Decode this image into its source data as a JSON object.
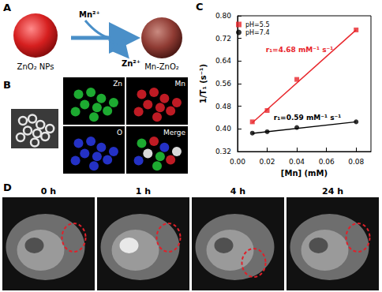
{
  "panel_a": {
    "label": "A",
    "reactant": "ZnO₂ NPs",
    "ion_in": "Mn²⁺",
    "ion_out": "Zn²⁺",
    "product": "Mn-ZnO₂"
  },
  "panel_b": {
    "label": "B",
    "channels": [
      "Zn",
      "Mn",
      "O",
      "Merge"
    ]
  },
  "chart_data": {
    "label": "C",
    "type": "scatter",
    "x_label": "[Mn] (mM)",
    "y_label": "1/T₁ (s⁻¹)",
    "xlim": [
      0,
      0.09
    ],
    "xticks": [
      {
        "value": 0,
        "label": "0.00"
      },
      {
        "value": 0.02,
        "label": "0.02"
      },
      {
        "value": 0.04,
        "label": "0.04"
      },
      {
        "value": 0.06,
        "label": "0.06"
      },
      {
        "value": 0.08,
        "label": "0.08"
      }
    ],
    "ylim": [
      0.32,
      0.8
    ],
    "yticks": [
      {
        "value": 0.32,
        "label": "0.32"
      },
      {
        "value": 0.4,
        "label": "0.40"
      },
      {
        "value": 0.48,
        "label": "0.48"
      },
      {
        "value": 0.56,
        "label": "0.56"
      },
      {
        "value": 0.64,
        "label": "0.64"
      },
      {
        "value": 0.72,
        "label": "0.72"
      },
      {
        "value": 0.8,
        "label": "0.80"
      }
    ],
    "grid": false,
    "legend": "upper left",
    "series": [
      {
        "name": "pH=5.5",
        "color": "#e8262b",
        "marker": "square",
        "x": [
          0.01,
          0.02,
          0.04,
          0.08
        ],
        "values": [
          0.425,
          0.465,
          0.575,
          0.75
        ],
        "fit": {
          "x": [
            0.01,
            0.08
          ],
          "y": [
            0.422,
            0.75
          ]
        },
        "annotation": "r₁=4.68 mM⁻¹ s⁻¹"
      },
      {
        "name": "pH=7.4",
        "color": "#000000",
        "marker": "circle",
        "x": [
          0.01,
          0.02,
          0.04,
          0.08
        ],
        "values": [
          0.385,
          0.39,
          0.405,
          0.425
        ],
        "fit": {
          "x": [
            0.01,
            0.08
          ],
          "y": [
            0.384,
            0.425
          ]
        },
        "annotation": "r₁=0.59 mM⁻¹ s⁻¹"
      }
    ]
  },
  "panel_d": {
    "label": "D",
    "timepoints": [
      "0 h",
      "1 h",
      "4 h",
      "24 h"
    ]
  }
}
